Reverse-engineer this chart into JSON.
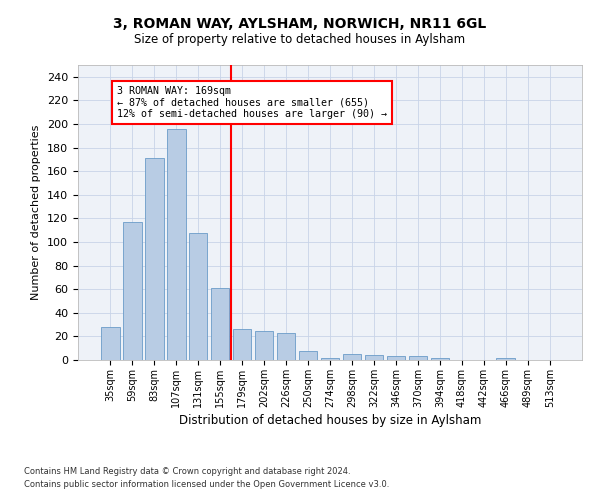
{
  "title_line1": "3, ROMAN WAY, AYLSHAM, NORWICH, NR11 6GL",
  "title_line2": "Size of property relative to detached houses in Aylsham",
  "xlabel": "Distribution of detached houses by size in Aylsham",
  "ylabel": "Number of detached properties",
  "bar_labels": [
    "35sqm",
    "59sqm",
    "83sqm",
    "107sqm",
    "131sqm",
    "155sqm",
    "179sqm",
    "202sqm",
    "226sqm",
    "250sqm",
    "274sqm",
    "298sqm",
    "322sqm",
    "346sqm",
    "370sqm",
    "394sqm",
    "418sqm",
    "442sqm",
    "466sqm",
    "489sqm",
    "513sqm"
  ],
  "bar_values": [
    28,
    117,
    171,
    196,
    108,
    61,
    26,
    25,
    23,
    8,
    2,
    5,
    4,
    3,
    3,
    2,
    0,
    0,
    2,
    0,
    0
  ],
  "bar_color": "#b8cce4",
  "bar_edge_color": "#6a9cc9",
  "annotation_text": "3 ROMAN WAY: 169sqm\n← 87% of detached houses are smaller (655)\n12% of semi-detached houses are larger (90) →",
  "vline_x_index": 5.5,
  "vline_color": "red",
  "annotation_box_color": "white",
  "annotation_box_edge": "red",
  "ylim": [
    0,
    250
  ],
  "yticks": [
    0,
    20,
    40,
    60,
    80,
    100,
    120,
    140,
    160,
    180,
    200,
    220,
    240
  ],
  "footnote1": "Contains HM Land Registry data © Crown copyright and database right 2024.",
  "footnote2": "Contains public sector information licensed under the Open Government Licence v3.0.",
  "bg_color": "#eef2f8",
  "grid_color": "#c8d4e8"
}
